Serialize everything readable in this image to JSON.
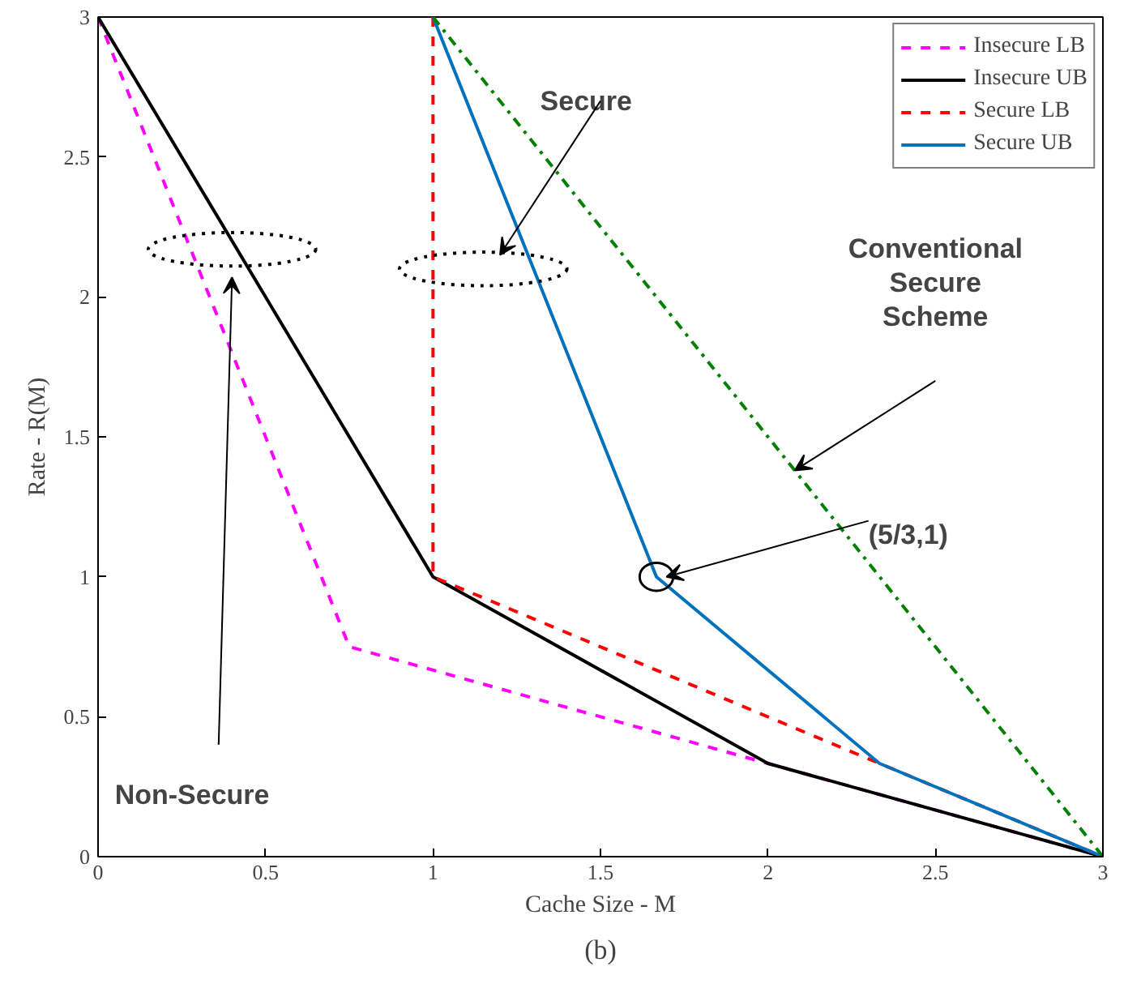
{
  "chart_data": {
    "type": "line",
    "xlabel": "Cache Size - M",
    "ylabel": "Rate - R(M)",
    "xlim": [
      0,
      3
    ],
    "ylim": [
      0,
      3
    ],
    "xticks": [
      0,
      0.5,
      1,
      1.5,
      2,
      2.5,
      3
    ],
    "yticks": [
      0,
      0.5,
      1,
      1.5,
      2,
      2.5,
      3
    ],
    "grid": false,
    "legend": "top right",
    "marker": "none",
    "series": [
      {
        "name": "Insecure LB",
        "color": "#ff00ff",
        "line_style": "dashed",
        "x": [
          0,
          0.75,
          2,
          3
        ],
        "values": [
          3,
          0.75,
          0.333,
          0
        ]
      },
      {
        "name": "Insecure UB",
        "color": "#000000",
        "line_style": "solid",
        "x": [
          0,
          1,
          2,
          3
        ],
        "values": [
          3,
          1,
          0.333,
          0
        ]
      },
      {
        "name": "Secure LB",
        "color": "#ff0000",
        "line_style": "dashed",
        "x": [
          1,
          1,
          2.333,
          3
        ],
        "values": [
          3,
          1,
          0.333,
          0
        ]
      },
      {
        "name": "Secure UB",
        "color": "#0072bd",
        "line_style": "solid",
        "x": [
          1,
          1.667,
          2.333,
          3
        ],
        "values": [
          3,
          1,
          0.333,
          0
        ]
      },
      {
        "color": "#008000",
        "line_style": "dashdot",
        "x": [
          1,
          3
        ],
        "values": [
          3,
          0
        ]
      }
    ],
    "annotations": [
      "Non-Secure",
      "Secure",
      "Conventional Secure Scheme",
      {
        "text": "(5/3,1)",
        "x": 1.667,
        "y": 1
      },
      "(b)"
    ]
  }
}
